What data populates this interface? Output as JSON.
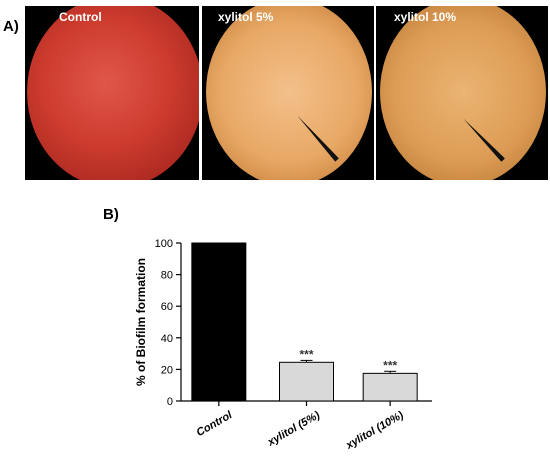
{
  "panel_a": {
    "letter": "A)",
    "images": [
      {
        "label": "Control",
        "color": "#c73a2c"
      },
      {
        "label": "xylitol 5%",
        "color": "#e6a669"
      },
      {
        "label": "xylitol 10%",
        "color": "#d99a55"
      }
    ]
  },
  "panel_b": {
    "letter": "B)"
  },
  "chart_data": {
    "type": "bar",
    "categories": [
      "Control",
      "xylitol (5%)",
      "xylitol (10%)"
    ],
    "values": [
      100,
      24.5,
      17.5
    ],
    "errors": [
      0,
      1.2,
      1.3
    ],
    "significance": [
      "",
      "***",
      "***"
    ],
    "bar_colors": [
      "#000000",
      "#d9d9d9",
      "#d9d9d9"
    ],
    "title": "",
    "xlabel": "",
    "ylabel": "% of Biofilm formation",
    "ylim": [
      0,
      100
    ],
    "yticks": [
      0,
      20,
      40,
      60,
      80,
      100
    ],
    "grid": false
  }
}
